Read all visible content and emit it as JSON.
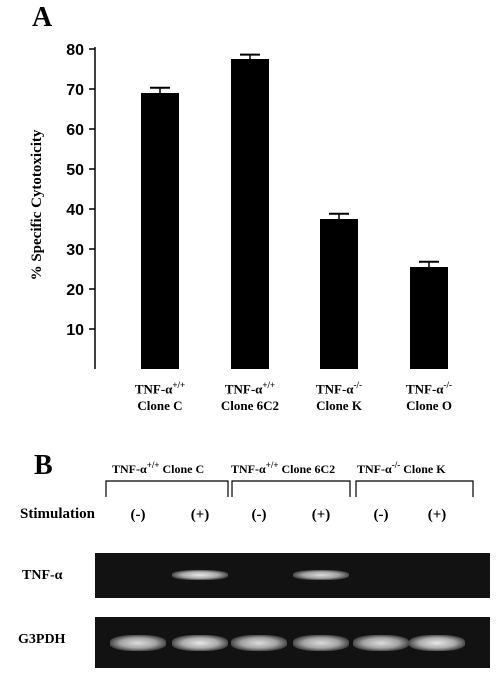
{
  "panel_a": {
    "letter": "A"
  },
  "panel_b": {
    "letter": "B"
  },
  "chart_data": {
    "type": "bar",
    "ylabel": "% Specific Cytotoxicity",
    "xlabel": "",
    "ylim": [
      0,
      80
    ],
    "yticks": [
      10,
      20,
      30,
      40,
      50,
      60,
      70,
      80
    ],
    "categories": [
      {
        "base": "TNF-α",
        "sup": "+/+",
        "line2": "Clone C"
      },
      {
        "base": "TNF-α",
        "sup": "+/+",
        "line2": "Clone 6C2"
      },
      {
        "base": "TNF-α",
        "sup": "-/-",
        "line2": "Clone K"
      },
      {
        "base": "TNF-α",
        "sup": "-/-",
        "line2": "Clone O"
      }
    ],
    "values": [
      69,
      77.5,
      37.5,
      25.5
    ],
    "errors": [
      1.3,
      1.1,
      1.3,
      1.3
    ],
    "bar_color": "#000000"
  },
  "gel": {
    "groups": [
      {
        "base": "TNF-α",
        "sup": "+/+",
        "name": "Clone C"
      },
      {
        "base": "TNF-α",
        "sup": "+/+",
        "name": "Clone 6C2"
      },
      {
        "base": "TNF-α",
        "sup": "-/-",
        "name": "Clone K"
      }
    ],
    "stimulation_label": "Stimulation",
    "lanes": [
      "(-)",
      "(+)",
      "(-)",
      "(+)",
      "(-)",
      "(+)"
    ],
    "rows": [
      {
        "label": "TNF-α",
        "band_intensity": [
          0,
          0.9,
          0,
          0.85,
          0,
          0
        ]
      },
      {
        "label": "G3PDH",
        "band_intensity": [
          0.85,
          0.9,
          0.85,
          0.85,
          0.85,
          0.9
        ]
      }
    ]
  }
}
